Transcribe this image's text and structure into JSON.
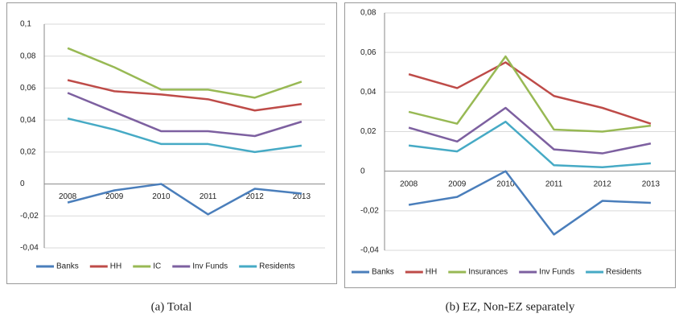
{
  "chart_data": [
    {
      "type": "line",
      "caption": "(a) Total",
      "categories": [
        "2008",
        "2009",
        "2010",
        "2011",
        "2012",
        "2013"
      ],
      "series": [
        {
          "name": "Banks",
          "color": "#4a7ebb",
          "values": [
            -0.0116,
            -0.004,
            0,
            -0.019,
            -0.003,
            -0.006
          ]
        },
        {
          "name": "HH",
          "color": "#be4b48",
          "values": [
            0.065,
            0.058,
            0.056,
            0.053,
            0.046,
            0.05
          ]
        },
        {
          "name": "IC",
          "color": "#98b954",
          "values": [
            0.085,
            0.073,
            0.059,
            0.059,
            0.054,
            0.064
          ]
        },
        {
          "name": "Inv Funds",
          "color": "#7d60a0",
          "values": [
            0.057,
            0.045,
            0.033,
            0.033,
            0.03,
            0.039
          ]
        },
        {
          "name": "Residents",
          "color": "#46aac5",
          "values": [
            0.041,
            0.034,
            0.025,
            0.025,
            0.02,
            0.024
          ]
        }
      ],
      "ylim": [
        -0.04,
        0.1
      ],
      "yticks": [
        {
          "value": -0.04,
          "label": "-0,04"
        },
        {
          "value": -0.02,
          "label": "-0,02"
        },
        0,
        {
          "value": 0.02,
          "label": "0,02"
        },
        {
          "value": 0.04,
          "label": "0,04"
        },
        {
          "value": 0.06,
          "label": "0,06"
        },
        {
          "value": 0.08,
          "label": "0,08"
        },
        {
          "value": 0.1,
          "label": "0,1"
        }
      ],
      "grid": true,
      "legend": "bottom"
    },
    {
      "type": "line",
      "caption": "(b) EZ, Non-EZ separately",
      "categories": [
        "2008",
        "2009",
        "2010",
        "2011",
        "2012",
        "2013"
      ],
      "series": [
        {
          "name": "Banks",
          "color": "#4a7ebb",
          "values": [
            -0.017,
            -0.013,
            0,
            -0.032,
            -0.015,
            -0.016
          ]
        },
        {
          "name": "HH",
          "color": "#be4b48",
          "values": [
            0.049,
            0.042,
            0.055,
            0.038,
            0.032,
            0.024
          ]
        },
        {
          "name": "Insurances",
          "color": "#98b954",
          "values": [
            0.03,
            0.024,
            0.058,
            0.021,
            0.02,
            0.023
          ]
        },
        {
          "name": "Inv Funds",
          "color": "#7d60a0",
          "values": [
            0.022,
            0.015,
            0.032,
            0.011,
            0.009,
            0.014
          ]
        },
        {
          "name": "Residents",
          "color": "#46aac5",
          "values": [
            0.013,
            0.01,
            0.025,
            0.003,
            0.002,
            0.004
          ]
        }
      ],
      "ylim": [
        -0.04,
        0.08
      ],
      "yticks": [
        {
          "value": -0.04,
          "label": "-0,04"
        },
        {
          "value": -0.02,
          "label": "-0,02"
        },
        0,
        {
          "value": 0.02,
          "label": "0,02"
        },
        {
          "value": 0.04,
          "label": "0,04"
        },
        {
          "value": 0.06,
          "label": "0,06"
        },
        {
          "value": 0.08,
          "label": "0,08"
        }
      ],
      "grid": true,
      "legend": "bottom"
    }
  ]
}
